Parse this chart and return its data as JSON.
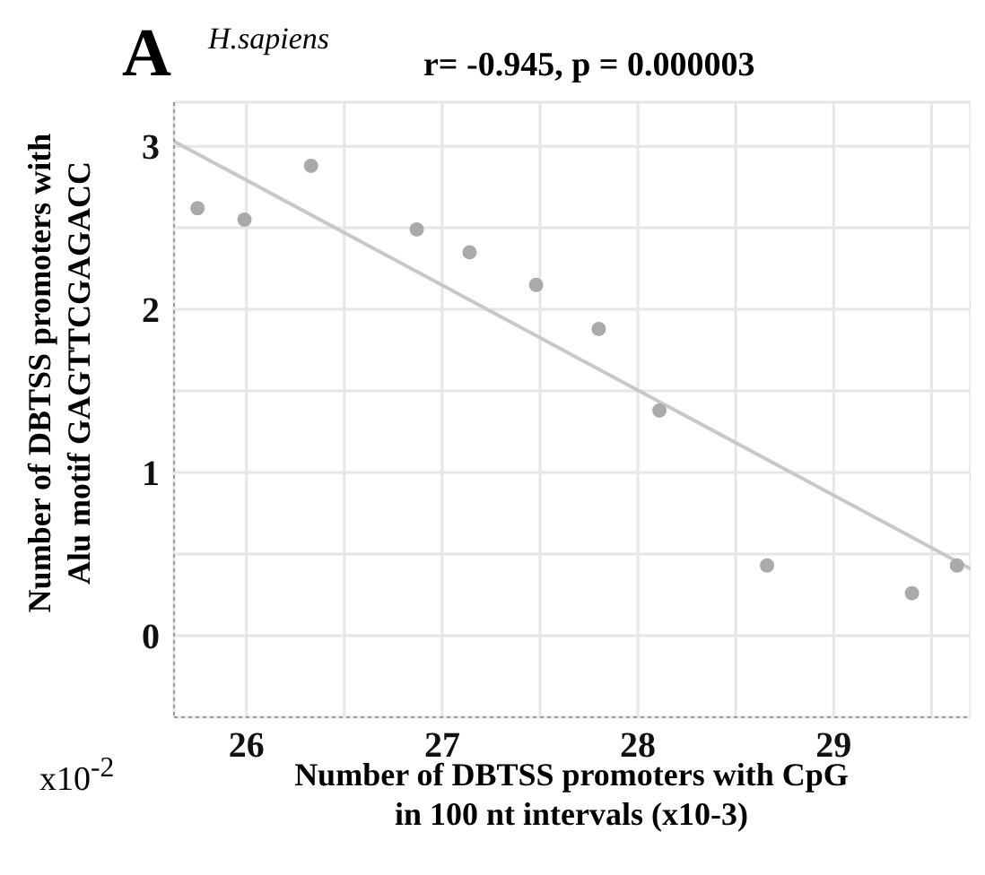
{
  "chart_data": {
    "type": "scatter",
    "title": "r= -0.945, p = 0.000003",
    "xlabel": "Number of DBTSS promoters with CpG\nin 100 nt intervals (x10-3)",
    "ylabel": "Number of DBTSS promoters with\nAlu motif GAGTTCGAGACC",
    "annotations": [
      "A",
      "H.sapiens",
      "x10$^{-2}$"
    ],
    "x": [
      25.75,
      25.99,
      26.33,
      26.87,
      27.14,
      27.48,
      27.8,
      28.11,
      28.66,
      29.4,
      29.63
    ],
    "series": [
      {
        "color": "#aaaaaa",
        "marker": "circle",
        "values": [
          2.62,
          2.55,
          2.88,
          2.49,
          2.35,
          2.15,
          1.88,
          1.38,
          0.43,
          0.26,
          0.43
        ]
      },
      {
        "type": "line",
        "marker": "none",
        "color": "#c8c8c8",
        "x": [
          25.63,
          29.7
        ],
        "values": [
          3.03,
          0.41
        ]
      }
    ],
    "xlim": [
      25.63,
      29.7
    ],
    "ylim": [
      -0.5,
      3.27
    ],
    "xticks": [
      26,
      {
        "value": 26.5,
        "label": null
      },
      27,
      {
        "value": 27.5,
        "label": null
      },
      28,
      {
        "value": 28.5,
        "label": null
      },
      29,
      {
        "value": 29.5,
        "label": null
      }
    ],
    "yticks": [
      0,
      {
        "value": 0.5,
        "label": null
      },
      1,
      {
        "value": 1.5,
        "label": null
      },
      2,
      {
        "value": 2.5,
        "label": null
      },
      3
    ],
    "grid": true
  }
}
